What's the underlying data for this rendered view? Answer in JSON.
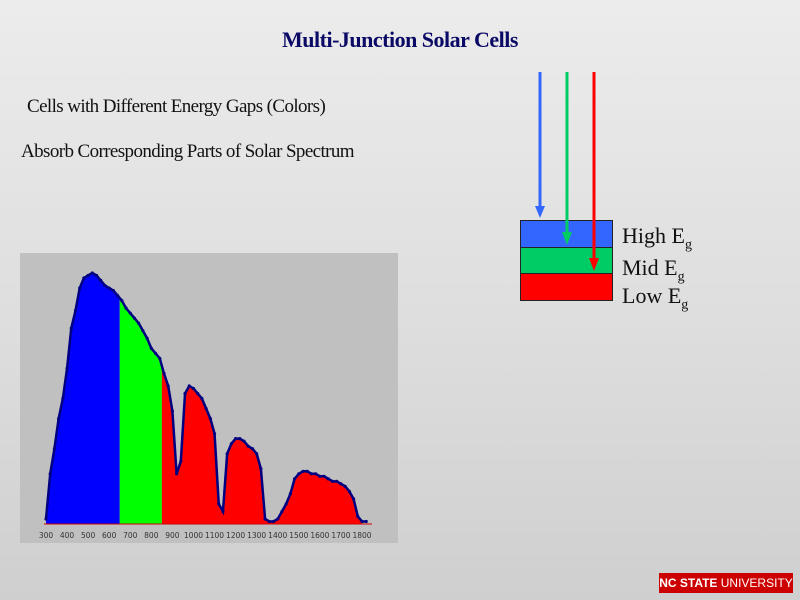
{
  "slide": {
    "title": "Multi-Junction Solar Cells",
    "bullets": [
      "Cells with Different Energy Gaps (Colors)",
      "Absorb Corresponding Parts of Solar Spectrum"
    ]
  },
  "diagram": {
    "layers": [
      {
        "name": "High",
        "label": "High E",
        "sub": "g",
        "color": "#3366ff"
      },
      {
        "name": "Mid",
        "label": "Mid E",
        "sub": "g",
        "color": "#00cc66"
      },
      {
        "name": "Low",
        "label": "Low E",
        "sub": "g",
        "color": "#ff0000"
      }
    ],
    "arrow_colors": [
      "#3366ff",
      "#00cc66",
      "#ff0000"
    ]
  },
  "chart_data": {
    "type": "area",
    "title": "",
    "xlabel": "",
    "ylabel": "",
    "xlim": [
      300,
      1800
    ],
    "xticks": [
      "300",
      "400",
      "500",
      "600",
      "700",
      "800",
      "900",
      "1000",
      "1100",
      "1200",
      "1300",
      "1400",
      "1500",
      "1600",
      "1700",
      "1800"
    ],
    "ylim": [
      0,
      1.0
    ],
    "regions": [
      {
        "name": "High Eg",
        "from": 300,
        "to": 650,
        "color": "#0000ff"
      },
      {
        "name": "Mid Eg",
        "from": 650,
        "to": 850,
        "color": "#00ff00"
      },
      {
        "name": "Low Eg",
        "from": 850,
        "to": 1800,
        "color": "#ff0000"
      }
    ],
    "x": [
      300,
      320,
      340,
      360,
      380,
      400,
      420,
      440,
      460,
      480,
      500,
      520,
      540,
      560,
      580,
      600,
      620,
      640,
      660,
      680,
      700,
      720,
      740,
      760,
      780,
      800,
      820,
      840,
      860,
      880,
      900,
      920,
      940,
      960,
      980,
      1000,
      1020,
      1040,
      1060,
      1080,
      1100,
      1120,
      1140,
      1160,
      1180,
      1200,
      1220,
      1240,
      1260,
      1280,
      1300,
      1320,
      1340,
      1360,
      1380,
      1400,
      1420,
      1440,
      1460,
      1480,
      1500,
      1520,
      1540,
      1560,
      1580,
      1600,
      1620,
      1640,
      1660,
      1680,
      1700,
      1720,
      1740,
      1760,
      1780,
      1800,
      1820
    ],
    "y": [
      0.02,
      0.2,
      0.3,
      0.42,
      0.5,
      0.62,
      0.78,
      0.85,
      0.94,
      0.98,
      0.99,
      1.0,
      0.99,
      0.97,
      0.95,
      0.94,
      0.93,
      0.91,
      0.89,
      0.86,
      0.84,
      0.82,
      0.8,
      0.77,
      0.74,
      0.7,
      0.68,
      0.66,
      0.6,
      0.55,
      0.45,
      0.2,
      0.25,
      0.52,
      0.55,
      0.54,
      0.52,
      0.5,
      0.46,
      0.42,
      0.36,
      0.08,
      0.05,
      0.28,
      0.32,
      0.34,
      0.34,
      0.33,
      0.31,
      0.3,
      0.28,
      0.22,
      0.02,
      0.01,
      0.01,
      0.02,
      0.05,
      0.08,
      0.12,
      0.18,
      0.2,
      0.21,
      0.21,
      0.2,
      0.2,
      0.19,
      0.19,
      0.18,
      0.17,
      0.17,
      0.16,
      0.15,
      0.13,
      0.1,
      0.03,
      0.01,
      0.01
    ]
  },
  "logo": {
    "bold": "NC STATE",
    "rest": " UNIVERSITY"
  }
}
